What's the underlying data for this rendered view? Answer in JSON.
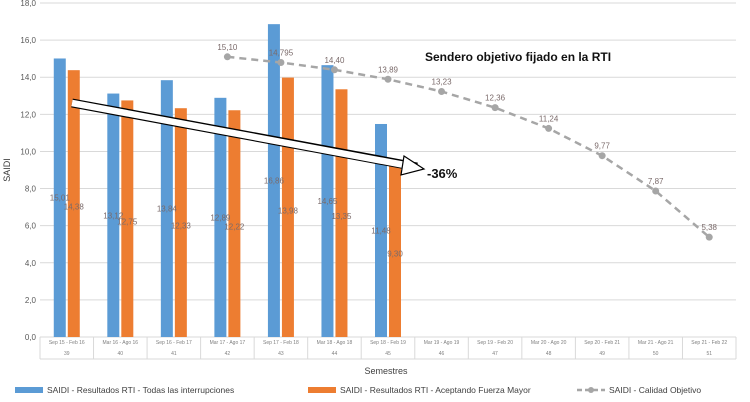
{
  "chart_data": {
    "type": "bar",
    "xlabel": "Semestres",
    "ylabel": "SAIDI",
    "ylim": [
      0,
      18
    ],
    "yticks": [
      "0,0",
      "2,0",
      "4,0",
      "6,0",
      "8,0",
      "10,0",
      "12,0",
      "14,0",
      "16,0",
      "18,0"
    ],
    "grid": true,
    "legend_position": "bottom",
    "categories": [
      "Sep 15 - Feb 16",
      "Mar 16 - Ago 16",
      "Sep 16 - Feb 17",
      "Mar 17 - Ago 17",
      "Sep 17 - Feb 18",
      "Mar 18 - Ago 18",
      "Sep 18 - Feb 19",
      "Mar 19 - Ago 19",
      "Sep 19 - Feb 20",
      "Mar 20 - Ago 20",
      "Sep 20 - Feb 21",
      "Mar 21 - Ago 21",
      "Sep 21 - Feb 22"
    ],
    "category_numbers": [
      "39",
      "40",
      "41",
      "42",
      "43",
      "44",
      "45",
      "46",
      "47",
      "48",
      "49",
      "50",
      "51"
    ],
    "series": [
      {
        "name": "SAIDI - Resultados RTI - Todas las interrupciones",
        "kind": "bar",
        "color": "#5b9bd5",
        "values": [
          15.01,
          13.12,
          13.84,
          12.89,
          16.86,
          14.65,
          11.48,
          null,
          null,
          null,
          null,
          null,
          null
        ],
        "labels": [
          "15,01",
          "13,12",
          "13,84",
          "12,89",
          "16,86",
          "14,65",
          "11,48",
          "",
          "",
          "",
          "",
          "",
          ""
        ]
      },
      {
        "name": "SAIDI - Resultados RTI - Aceptando Fuerza Mayor",
        "kind": "bar",
        "color": "#ed7d31",
        "values": [
          14.38,
          12.75,
          12.33,
          12.22,
          13.98,
          13.35,
          9.3,
          null,
          null,
          null,
          null,
          null,
          null
        ],
        "labels": [
          "14,38",
          "12,75",
          "12,33",
          "12,22",
          "13,98",
          "13,35",
          "9,30",
          "",
          "",
          "",
          "",
          "",
          ""
        ]
      },
      {
        "name": "SAIDI - Calidad Objetivo",
        "kind": "line",
        "color": "#a6a6a6",
        "values": [
          null,
          null,
          null,
          15.1,
          14.795,
          14.4,
          13.89,
          13.23,
          12.36,
          11.24,
          9.77,
          7.87,
          5.38
        ],
        "labels": [
          "",
          "",
          "",
          "15,10",
          "14,795",
          "14,40",
          "13,89",
          "13,23",
          "12,36",
          "11,24",
          "9,77",
          "7,87",
          "5,38"
        ]
      }
    ],
    "annotations": {
      "target_path": "Sendero objetivo fijado en la RTI",
      "reduction": "-36%"
    }
  }
}
